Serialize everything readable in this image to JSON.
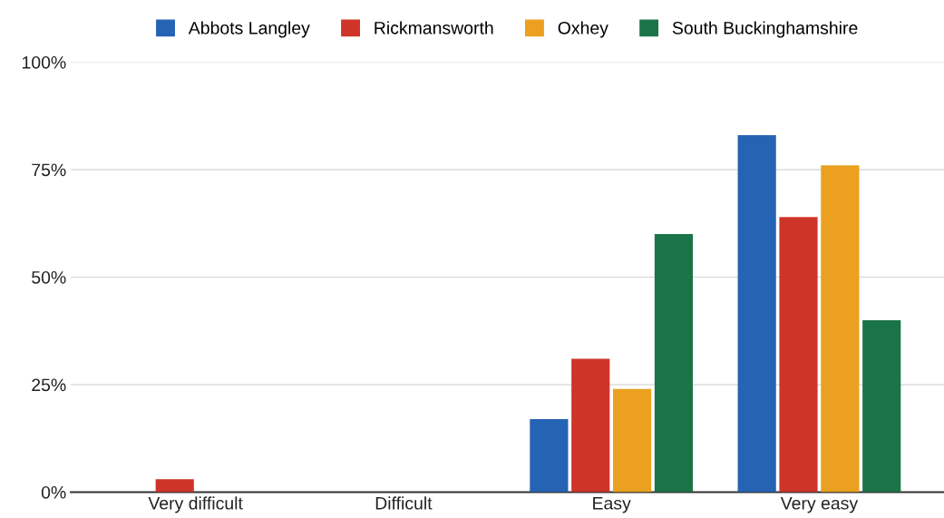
{
  "chart_data": {
    "type": "bar",
    "categories": [
      "Very difficult",
      "Difficult",
      "Easy",
      "Very easy"
    ],
    "series": [
      {
        "name": "Abbots Langley",
        "color": "#2563b4",
        "values": [
          0,
          0,
          17,
          83
        ]
      },
      {
        "name": "Rickmansworth",
        "color": "#cf3429",
        "values": [
          3,
          0,
          31,
          64
        ]
      },
      {
        "name": "Oxhey",
        "color": "#eba020",
        "values": [
          0,
          0,
          24,
          76
        ]
      },
      {
        "name": "South Buckinghamshire",
        "color": "#1b7448",
        "values": [
          0,
          0,
          60,
          40
        ]
      }
    ],
    "ylim": [
      0,
      100
    ],
    "yticks": [
      {
        "value": 0,
        "label": "0%"
      },
      {
        "value": 25,
        "label": "25%"
      },
      {
        "value": 50,
        "label": "50%"
      },
      {
        "value": 75,
        "label": "75%"
      },
      {
        "value": 100,
        "label": "100%"
      }
    ],
    "grid": "y",
    "legend": "top"
  }
}
